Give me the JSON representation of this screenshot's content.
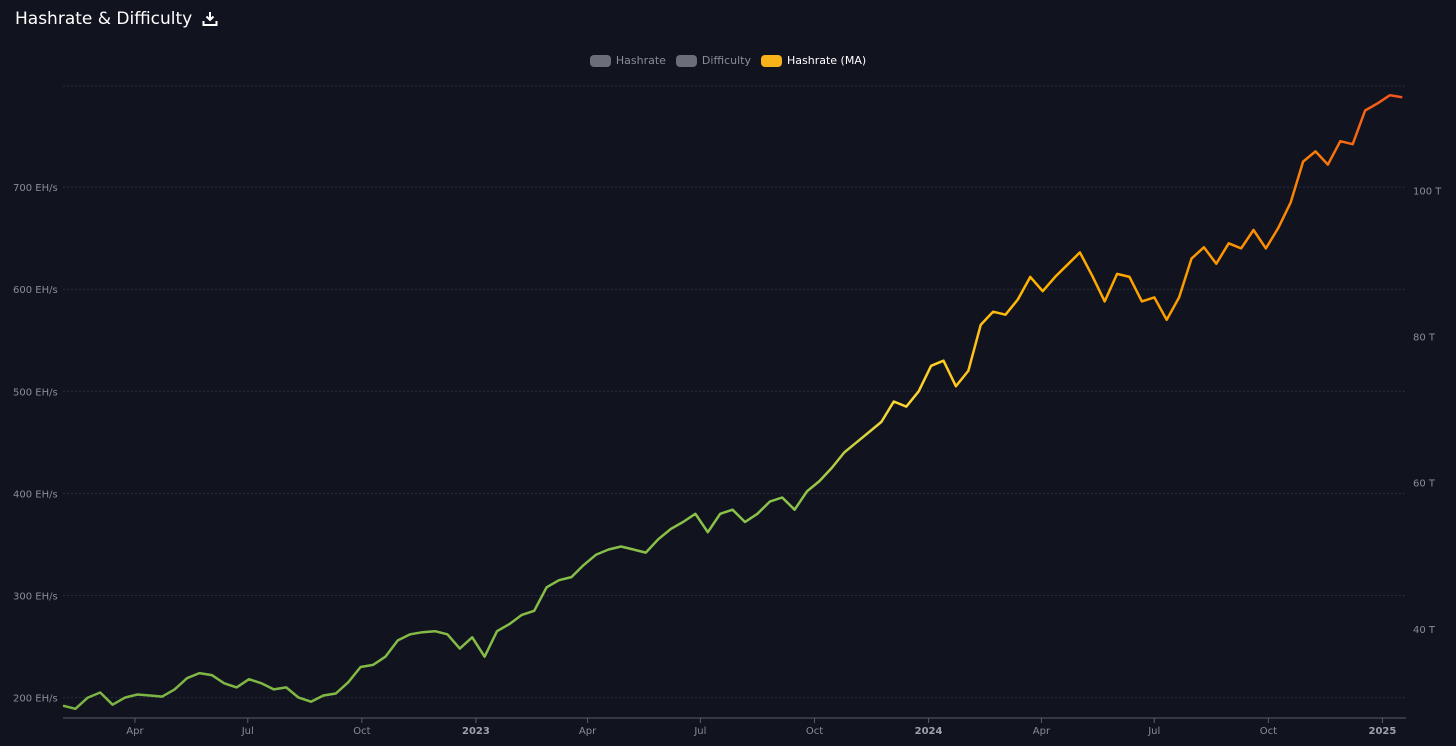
{
  "header": {
    "title": "Hashrate & Difficulty",
    "download_icon": "download-icon"
  },
  "legend": [
    {
      "label": "Hashrate",
      "color": "#6b6d78",
      "active": false
    },
    {
      "label": "Difficulty",
      "color": "#6b6d78",
      "active": false
    },
    {
      "label": "Hashrate (MA)",
      "color": "#f7b319",
      "active": true
    }
  ],
  "colors": {
    "background": "#11131f",
    "gradient": [
      "#7cb342",
      "#8bc34a",
      "#fdd835",
      "#ffb300",
      "#fb8c00",
      "#f4511e"
    ]
  },
  "chart_data": {
    "type": "line",
    "title": "Hashrate & Difficulty",
    "xlim": [
      "2022-02-02",
      "2025-01-20"
    ],
    "ylim_left": [
      180,
      800
    ],
    "ylim_right": [
      27.8,
      114.4
    ],
    "y_ticks_left": [
      {
        "value": 200,
        "label": "200 EH/s"
      },
      {
        "value": 300,
        "label": "300 EH/s"
      },
      {
        "value": 400,
        "label": "400 EH/s"
      },
      {
        "value": 500,
        "label": "500 EH/s"
      },
      {
        "value": 600,
        "label": "600 EH/s"
      },
      {
        "value": 700,
        "label": "700 EH/s"
      }
    ],
    "y_ticks_right": [
      {
        "value": 40,
        "label": "40 T"
      },
      {
        "value": 60,
        "label": "60 T"
      },
      {
        "value": 80,
        "label": "80 T"
      },
      {
        "value": 100,
        "label": "100 T"
      }
    ],
    "x_ticks": [
      {
        "date": "2022-04-01",
        "label": "Apr",
        "bold": false
      },
      {
        "date": "2022-07-01",
        "label": "Jul",
        "bold": false
      },
      {
        "date": "2022-10-01",
        "label": "Oct",
        "bold": false
      },
      {
        "date": "2023-01-01",
        "label": "2023",
        "bold": true
      },
      {
        "date": "2023-04-01",
        "label": "Apr",
        "bold": false
      },
      {
        "date": "2023-07-01",
        "label": "Jul",
        "bold": false
      },
      {
        "date": "2023-10-01",
        "label": "Oct",
        "bold": false
      },
      {
        "date": "2024-01-01",
        "label": "2024",
        "bold": true
      },
      {
        "date": "2024-04-01",
        "label": "Apr",
        "bold": false
      },
      {
        "date": "2024-07-01",
        "label": "Jul",
        "bold": false
      },
      {
        "date": "2024-10-01",
        "label": "Oct",
        "bold": false
      },
      {
        "date": "2025-01-01",
        "label": "2025",
        "bold": true
      }
    ],
    "series": [
      {
        "name": "Hashrate (MA)",
        "unit": "EH/s",
        "points": [
          [
            "2022-02-02",
            192
          ],
          [
            "2022-02-12",
            189
          ],
          [
            "2022-02-22",
            200
          ],
          [
            "2022-03-04",
            205
          ],
          [
            "2022-03-14",
            193
          ],
          [
            "2022-03-24",
            200
          ],
          [
            "2022-04-03",
            203
          ],
          [
            "2022-04-13",
            202
          ],
          [
            "2022-04-23",
            201
          ],
          [
            "2022-05-03",
            208
          ],
          [
            "2022-05-13",
            219
          ],
          [
            "2022-05-23",
            224
          ],
          [
            "2022-06-02",
            222
          ],
          [
            "2022-06-12",
            214
          ],
          [
            "2022-06-22",
            210
          ],
          [
            "2022-07-02",
            218
          ],
          [
            "2022-07-12",
            214
          ],
          [
            "2022-07-22",
            208
          ],
          [
            "2022-08-01",
            210
          ],
          [
            "2022-08-11",
            200
          ],
          [
            "2022-08-21",
            196
          ],
          [
            "2022-08-31",
            202
          ],
          [
            "2022-09-10",
            204
          ],
          [
            "2022-09-20",
            215
          ],
          [
            "2022-09-30",
            230
          ],
          [
            "2022-10-10",
            232
          ],
          [
            "2022-10-20",
            240
          ],
          [
            "2022-10-30",
            256
          ],
          [
            "2022-11-09",
            262
          ],
          [
            "2022-11-19",
            264
          ],
          [
            "2022-11-29",
            265
          ],
          [
            "2022-12-09",
            262
          ],
          [
            "2022-12-19",
            248
          ],
          [
            "2022-12-29",
            259
          ],
          [
            "2023-01-08",
            240
          ],
          [
            "2023-01-18",
            265
          ],
          [
            "2023-01-28",
            272
          ],
          [
            "2023-02-07",
            281
          ],
          [
            "2023-02-17",
            285
          ],
          [
            "2023-02-27",
            308
          ],
          [
            "2023-03-09",
            315
          ],
          [
            "2023-03-19",
            318
          ],
          [
            "2023-03-29",
            330
          ],
          [
            "2023-04-08",
            340
          ],
          [
            "2023-04-18",
            345
          ],
          [
            "2023-04-28",
            348
          ],
          [
            "2023-05-08",
            345
          ],
          [
            "2023-05-18",
            342
          ],
          [
            "2023-05-28",
            355
          ],
          [
            "2023-06-07",
            365
          ],
          [
            "2023-06-17",
            372
          ],
          [
            "2023-06-27",
            380
          ],
          [
            "2023-07-07",
            362
          ],
          [
            "2023-07-17",
            380
          ],
          [
            "2023-07-27",
            384
          ],
          [
            "2023-08-06",
            372
          ],
          [
            "2023-08-16",
            380
          ],
          [
            "2023-08-26",
            392
          ],
          [
            "2023-09-05",
            396
          ],
          [
            "2023-09-15",
            384
          ],
          [
            "2023-09-25",
            402
          ],
          [
            "2023-10-05",
            412
          ],
          [
            "2023-10-15",
            425
          ],
          [
            "2023-10-25",
            440
          ],
          [
            "2023-11-04",
            450
          ],
          [
            "2023-11-14",
            460
          ],
          [
            "2023-11-24",
            470
          ],
          [
            "2023-12-04",
            490
          ],
          [
            "2023-12-14",
            485
          ],
          [
            "2023-12-24",
            500
          ],
          [
            "2024-01-03",
            525
          ],
          [
            "2024-01-13",
            530
          ],
          [
            "2024-01-23",
            505
          ],
          [
            "2024-02-02",
            520
          ],
          [
            "2024-02-12",
            565
          ],
          [
            "2024-02-22",
            578
          ],
          [
            "2024-03-03",
            575
          ],
          [
            "2024-03-13",
            590
          ],
          [
            "2024-03-23",
            612
          ],
          [
            "2024-04-02",
            598
          ],
          [
            "2024-04-12",
            612
          ],
          [
            "2024-04-22",
            624
          ],
          [
            "2024-05-02",
            636
          ],
          [
            "2024-05-12",
            613
          ],
          [
            "2024-05-22",
            588
          ],
          [
            "2024-06-01",
            615
          ],
          [
            "2024-06-11",
            612
          ],
          [
            "2024-06-21",
            588
          ],
          [
            "2024-07-01",
            592
          ],
          [
            "2024-07-11",
            570
          ],
          [
            "2024-07-21",
            592
          ],
          [
            "2024-07-31",
            630
          ],
          [
            "2024-08-10",
            641
          ],
          [
            "2024-08-20",
            625
          ],
          [
            "2024-08-30",
            645
          ],
          [
            "2024-09-09",
            640
          ],
          [
            "2024-09-19",
            658
          ],
          [
            "2024-09-29",
            640
          ],
          [
            "2024-10-09",
            660
          ],
          [
            "2024-10-19",
            685
          ],
          [
            "2024-10-29",
            725
          ],
          [
            "2024-11-08",
            735
          ],
          [
            "2024-11-18",
            722
          ],
          [
            "2024-11-28",
            745
          ],
          [
            "2024-12-08",
            742
          ],
          [
            "2024-12-18",
            775
          ],
          [
            "2024-12-28",
            782
          ],
          [
            "2025-01-07",
            790
          ],
          [
            "2025-01-17",
            788
          ]
        ]
      }
    ]
  }
}
